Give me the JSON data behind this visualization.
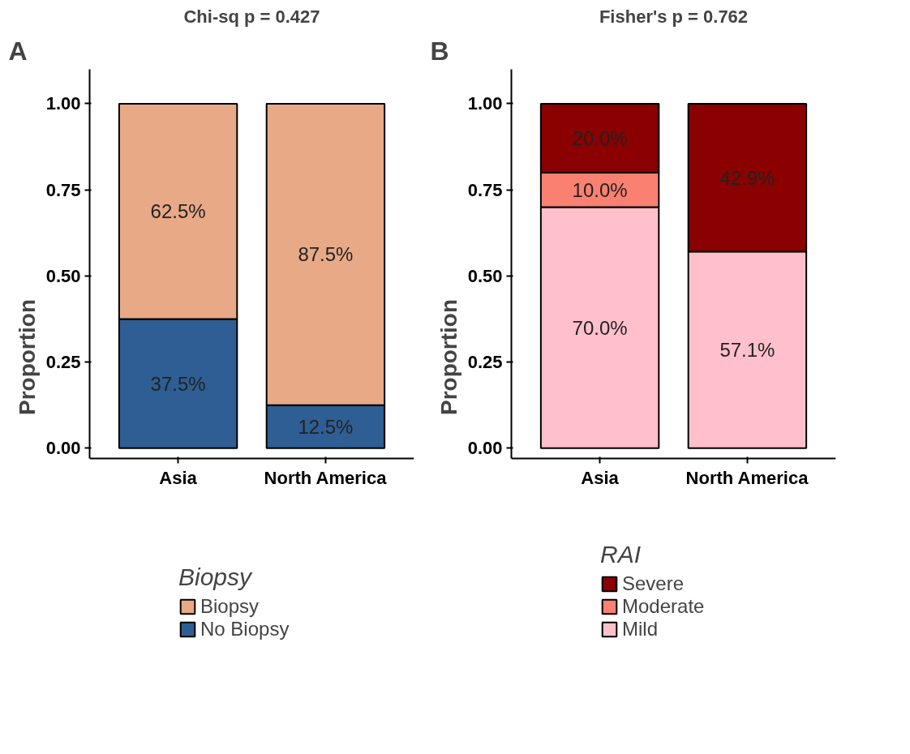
{
  "chart_data": [
    {
      "type": "bar",
      "stacked": true,
      "title": "Chi-sq p = 0.427",
      "ylabel": "Proportion",
      "legend_title": "Biopsy",
      "legend": "bottom",
      "grid": false,
      "annotations": [
        "A"
      ],
      "categories": [
        "Asia",
        "North America"
      ],
      "ylim": [
        -0.03,
        1.1
      ],
      "yticks": [
        {
          "value": 0,
          "label": "0.00"
        },
        {
          "value": 0.25,
          "label": "0.25"
        },
        {
          "value": 0.5,
          "label": "0.50"
        },
        {
          "value": 0.75,
          "label": "0.75"
        },
        {
          "value": 1,
          "label": "1.00"
        }
      ],
      "series": [
        {
          "name": "No Biopsy",
          "color": "#2e5e93",
          "values": [
            0.375,
            0.125
          ],
          "value_labels": [
            "37.5%",
            "12.5%"
          ]
        },
        {
          "name": "Biopsy",
          "color": "#e8a987",
          "values": [
            0.625,
            0.875
          ],
          "value_labels": [
            "62.5%",
            "87.5%"
          ]
        }
      ]
    },
    {
      "type": "bar",
      "stacked": true,
      "title": "Fisher's p = 0.762",
      "ylabel": "Proportion",
      "legend_title": "RAI",
      "legend": "bottom",
      "grid": false,
      "annotations": [
        "B"
      ],
      "categories": [
        "Asia",
        "North America"
      ],
      "ylim": [
        -0.03,
        1.1
      ],
      "yticks": [
        {
          "value": 0,
          "label": "0.00"
        },
        {
          "value": 0.25,
          "label": "0.25"
        },
        {
          "value": 0.5,
          "label": "0.50"
        },
        {
          "value": 0.75,
          "label": "0.75"
        },
        {
          "value": 1,
          "label": "1.00"
        }
      ],
      "series": [
        {
          "name": "Mild",
          "color": "#ffc0cb",
          "values": [
            0.7,
            0.571
          ],
          "value_labels": [
            "70.0%",
            "57.1%"
          ]
        },
        {
          "name": "Moderate",
          "color": "#fa8072",
          "values": [
            0.1,
            0
          ],
          "value_labels": [
            "10.0%",
            null
          ]
        },
        {
          "name": "Severe",
          "color": "#8b0000",
          "values": [
            0.2,
            0.429
          ],
          "value_labels": [
            "20.0%",
            "42.9%"
          ]
        }
      ]
    }
  ]
}
